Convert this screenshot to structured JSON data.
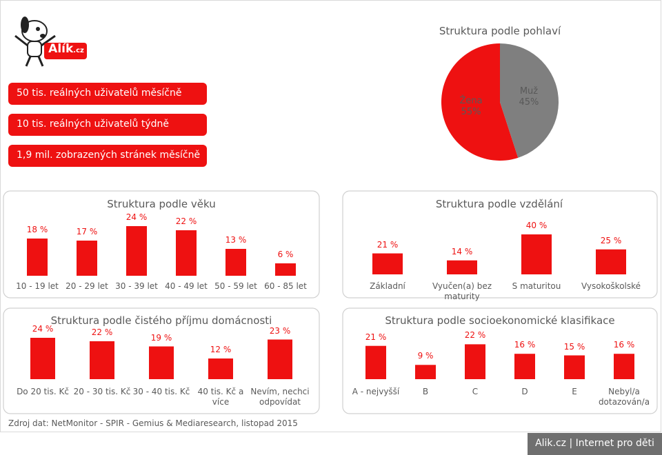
{
  "logo": {
    "name": "Alík",
    "suffix": ".cz"
  },
  "stats": [
    "50 tis. reálných uživatelů měsíčně",
    "10 tis. reálných uživatelů týdně",
    "1,9 mil. zobrazených stránek měsíčně"
  ],
  "chart_data": [
    {
      "type": "pie",
      "title": "Struktura podle pohlaví",
      "categories": [
        "Žena",
        "Muž"
      ],
      "values": [
        55,
        45
      ],
      "value_labels": [
        "55%",
        "45%"
      ],
      "colors": [
        "#ee1111",
        "#7f7f7f"
      ]
    },
    {
      "type": "bar",
      "title": "Struktura podle věku",
      "categories": [
        "10 - 19 let",
        "20 - 29 let",
        "30 - 39 let",
        "40 - 49 let",
        "50 - 59 let",
        "60 - 85 let"
      ],
      "values": [
        18,
        17,
        24,
        22,
        13,
        6
      ],
      "value_labels": [
        "18 %",
        "17 %",
        "24 %",
        "22 %",
        "13 %",
        "6 %"
      ],
      "color": "#ee1111"
    },
    {
      "type": "bar",
      "title": "Struktura podle vzdělání",
      "categories": [
        "Základní",
        "Vyučen(a) bez maturity",
        "S maturitou",
        "Vysokoškolské"
      ],
      "values": [
        21,
        14,
        40,
        25
      ],
      "value_labels": [
        "21 %",
        "14 %",
        "40 %",
        "25 %"
      ],
      "color": "#ee1111"
    },
    {
      "type": "bar",
      "title": "Struktura podle čistého příjmu domácnosti",
      "categories": [
        "Do 20 tis. Kč",
        "20 - 30 tis. Kč",
        "30 - 40 tis. Kč",
        "40 tis. Kč a více",
        "Nevím, nechci odpovídat"
      ],
      "values": [
        24,
        22,
        19,
        12,
        23
      ],
      "value_labels": [
        "24 %",
        "22 %",
        "19 %",
        "12 %",
        "23 %"
      ],
      "color": "#ee1111"
    },
    {
      "type": "bar",
      "title": "Struktura podle socioekonomické klasifikace",
      "categories": [
        "A - nejvyšší",
        "B",
        "C",
        "D",
        "E",
        "Nebyl/a dotazován/a"
      ],
      "values": [
        21,
        9,
        22,
        16,
        15,
        16
      ],
      "value_labels": [
        "21 %",
        "9 %",
        "22 %",
        "16 %",
        "15 %",
        "16 %"
      ],
      "color": "#ee1111"
    }
  ],
  "source": "Zdroj dat: NetMonitor - SPIR - Gemius & Mediaresearch, listopad 2015",
  "footer": "Alik.cz | Internet pro děti"
}
